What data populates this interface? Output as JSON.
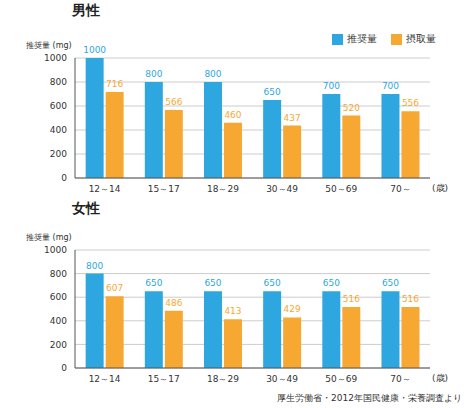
{
  "chart_data": [
    {
      "type": "bar",
      "title": "男性",
      "y_label": "推奨量 (mg)",
      "x_label": "(歳)",
      "categories": [
        "12～14",
        "15～17",
        "18～29",
        "30～49",
        "50～69",
        "70～"
      ],
      "series": [
        {
          "name": "推奨量",
          "color": "#2ea7e0",
          "values": [
            1000,
            800,
            800,
            650,
            700,
            700
          ]
        },
        {
          "name": "摂取量",
          "color": "#f7a833",
          "values": [
            716,
            566,
            460,
            437,
            520,
            556
          ]
        }
      ],
      "ylim": [
        0,
        1000
      ],
      "yticks": [
        0,
        200,
        400,
        600,
        800,
        1000
      ],
      "grid": true,
      "data_labels": true,
      "legend": "upper right"
    },
    {
      "type": "bar",
      "title": "女性",
      "y_label": "推奨量 (mg)",
      "x_label": "(歳)",
      "annotation": "厚生労働省・2012年国民健康・栄養調査より",
      "categories": [
        "12～14",
        "15～17",
        "18～29",
        "30～49",
        "50～69",
        "70～"
      ],
      "series": [
        {
          "name": "推奨量",
          "color": "#2ea7e0",
          "values": [
            800,
            650,
            650,
            650,
            650,
            650
          ]
        },
        {
          "name": "摂取量",
          "color": "#f7a833",
          "values": [
            607,
            486,
            413,
            429,
            516,
            516
          ]
        }
      ],
      "ylim": [
        0,
        1000
      ],
      "yticks": [
        0,
        200,
        400,
        600,
        800,
        1000
      ],
      "grid": true,
      "data_labels": true
    }
  ]
}
